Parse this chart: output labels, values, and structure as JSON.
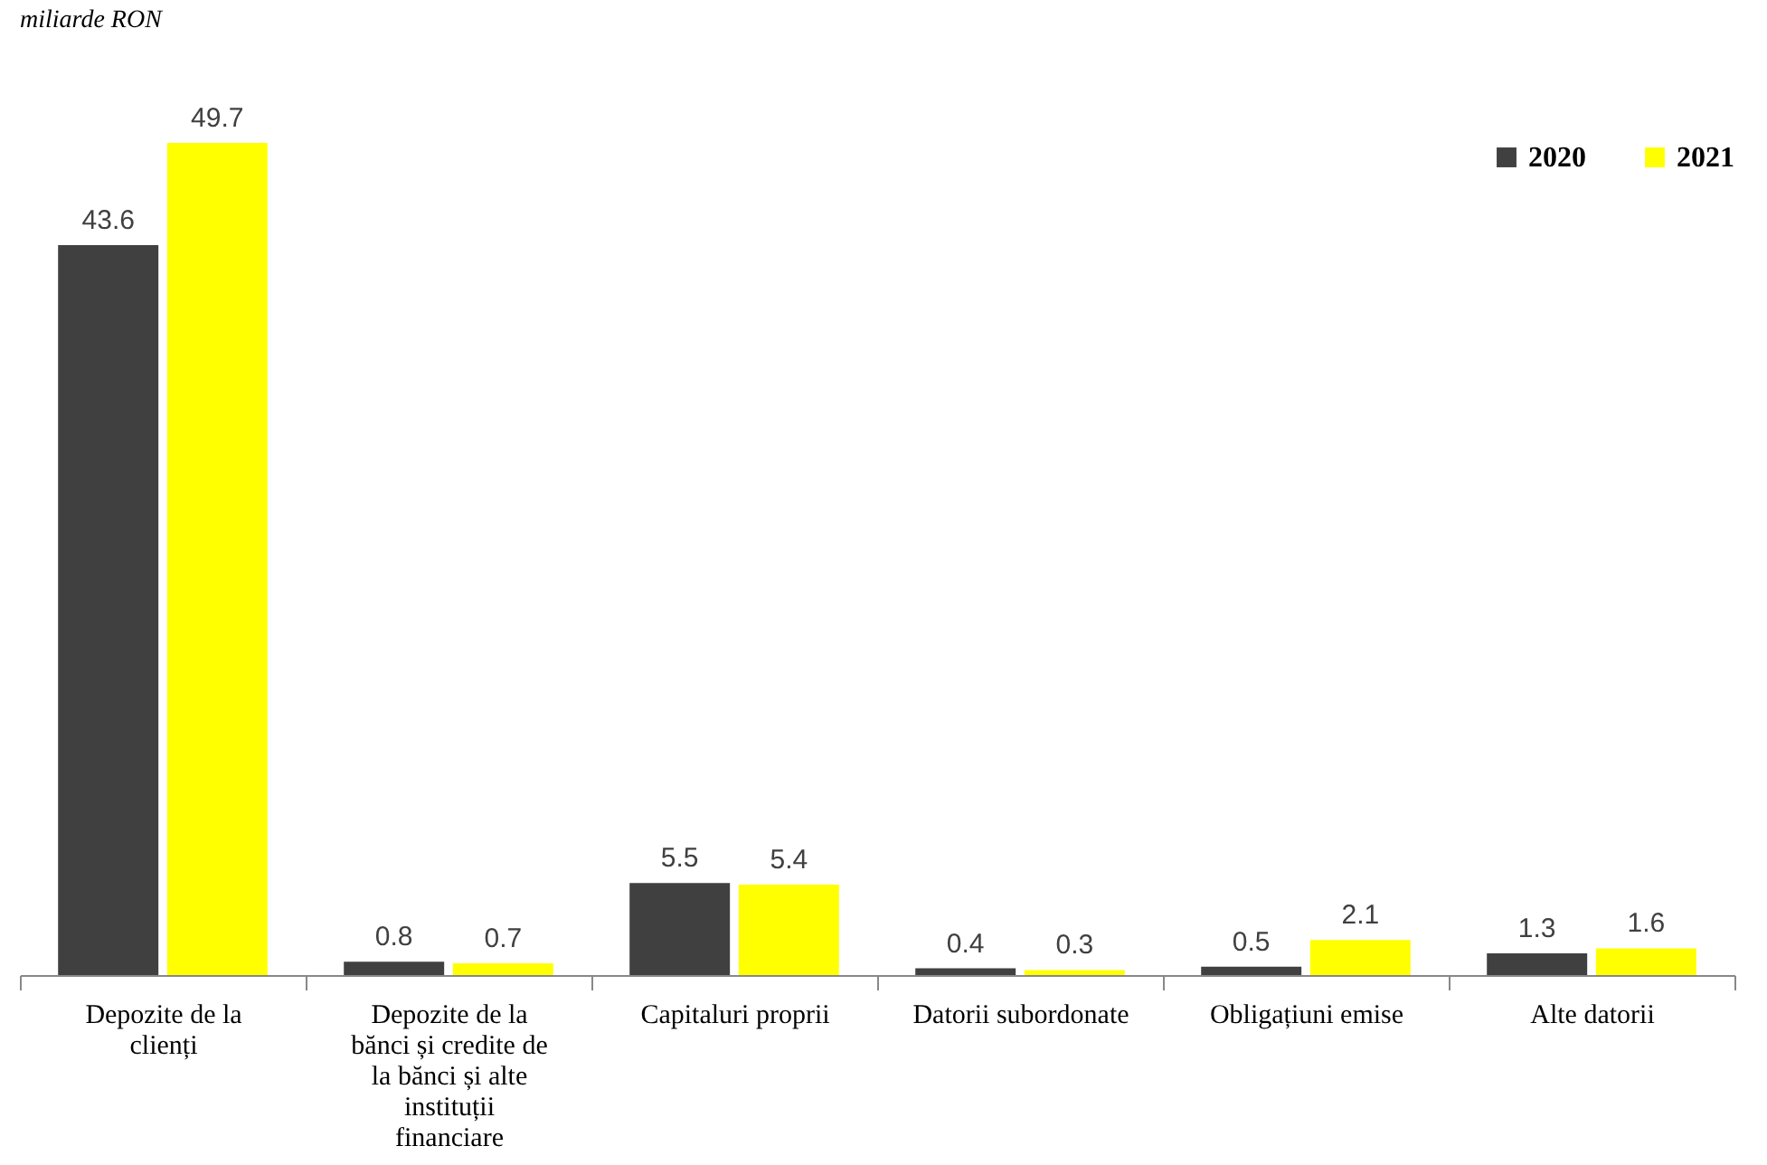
{
  "chart_data": {
    "type": "bar",
    "title": "miliarde RON",
    "categories": [
      "Depozite de la clienți",
      "Depozite de la bănci și credite de la bănci și alte instituții financiare",
      "Capitaluri proprii",
      "Datorii subordonate",
      "Obligațiuni emise",
      "Alte datorii"
    ],
    "series": [
      {
        "name": "2020",
        "color": "#404040",
        "values": [
          43.6,
          0.8,
          5.5,
          0.4,
          0.5,
          1.3
        ]
      },
      {
        "name": "2021",
        "color": "#ffff00",
        "values": [
          49.7,
          0.7,
          5.4,
          0.3,
          2.1,
          1.6
        ]
      }
    ],
    "data_labels": true,
    "legend": "top right"
  }
}
